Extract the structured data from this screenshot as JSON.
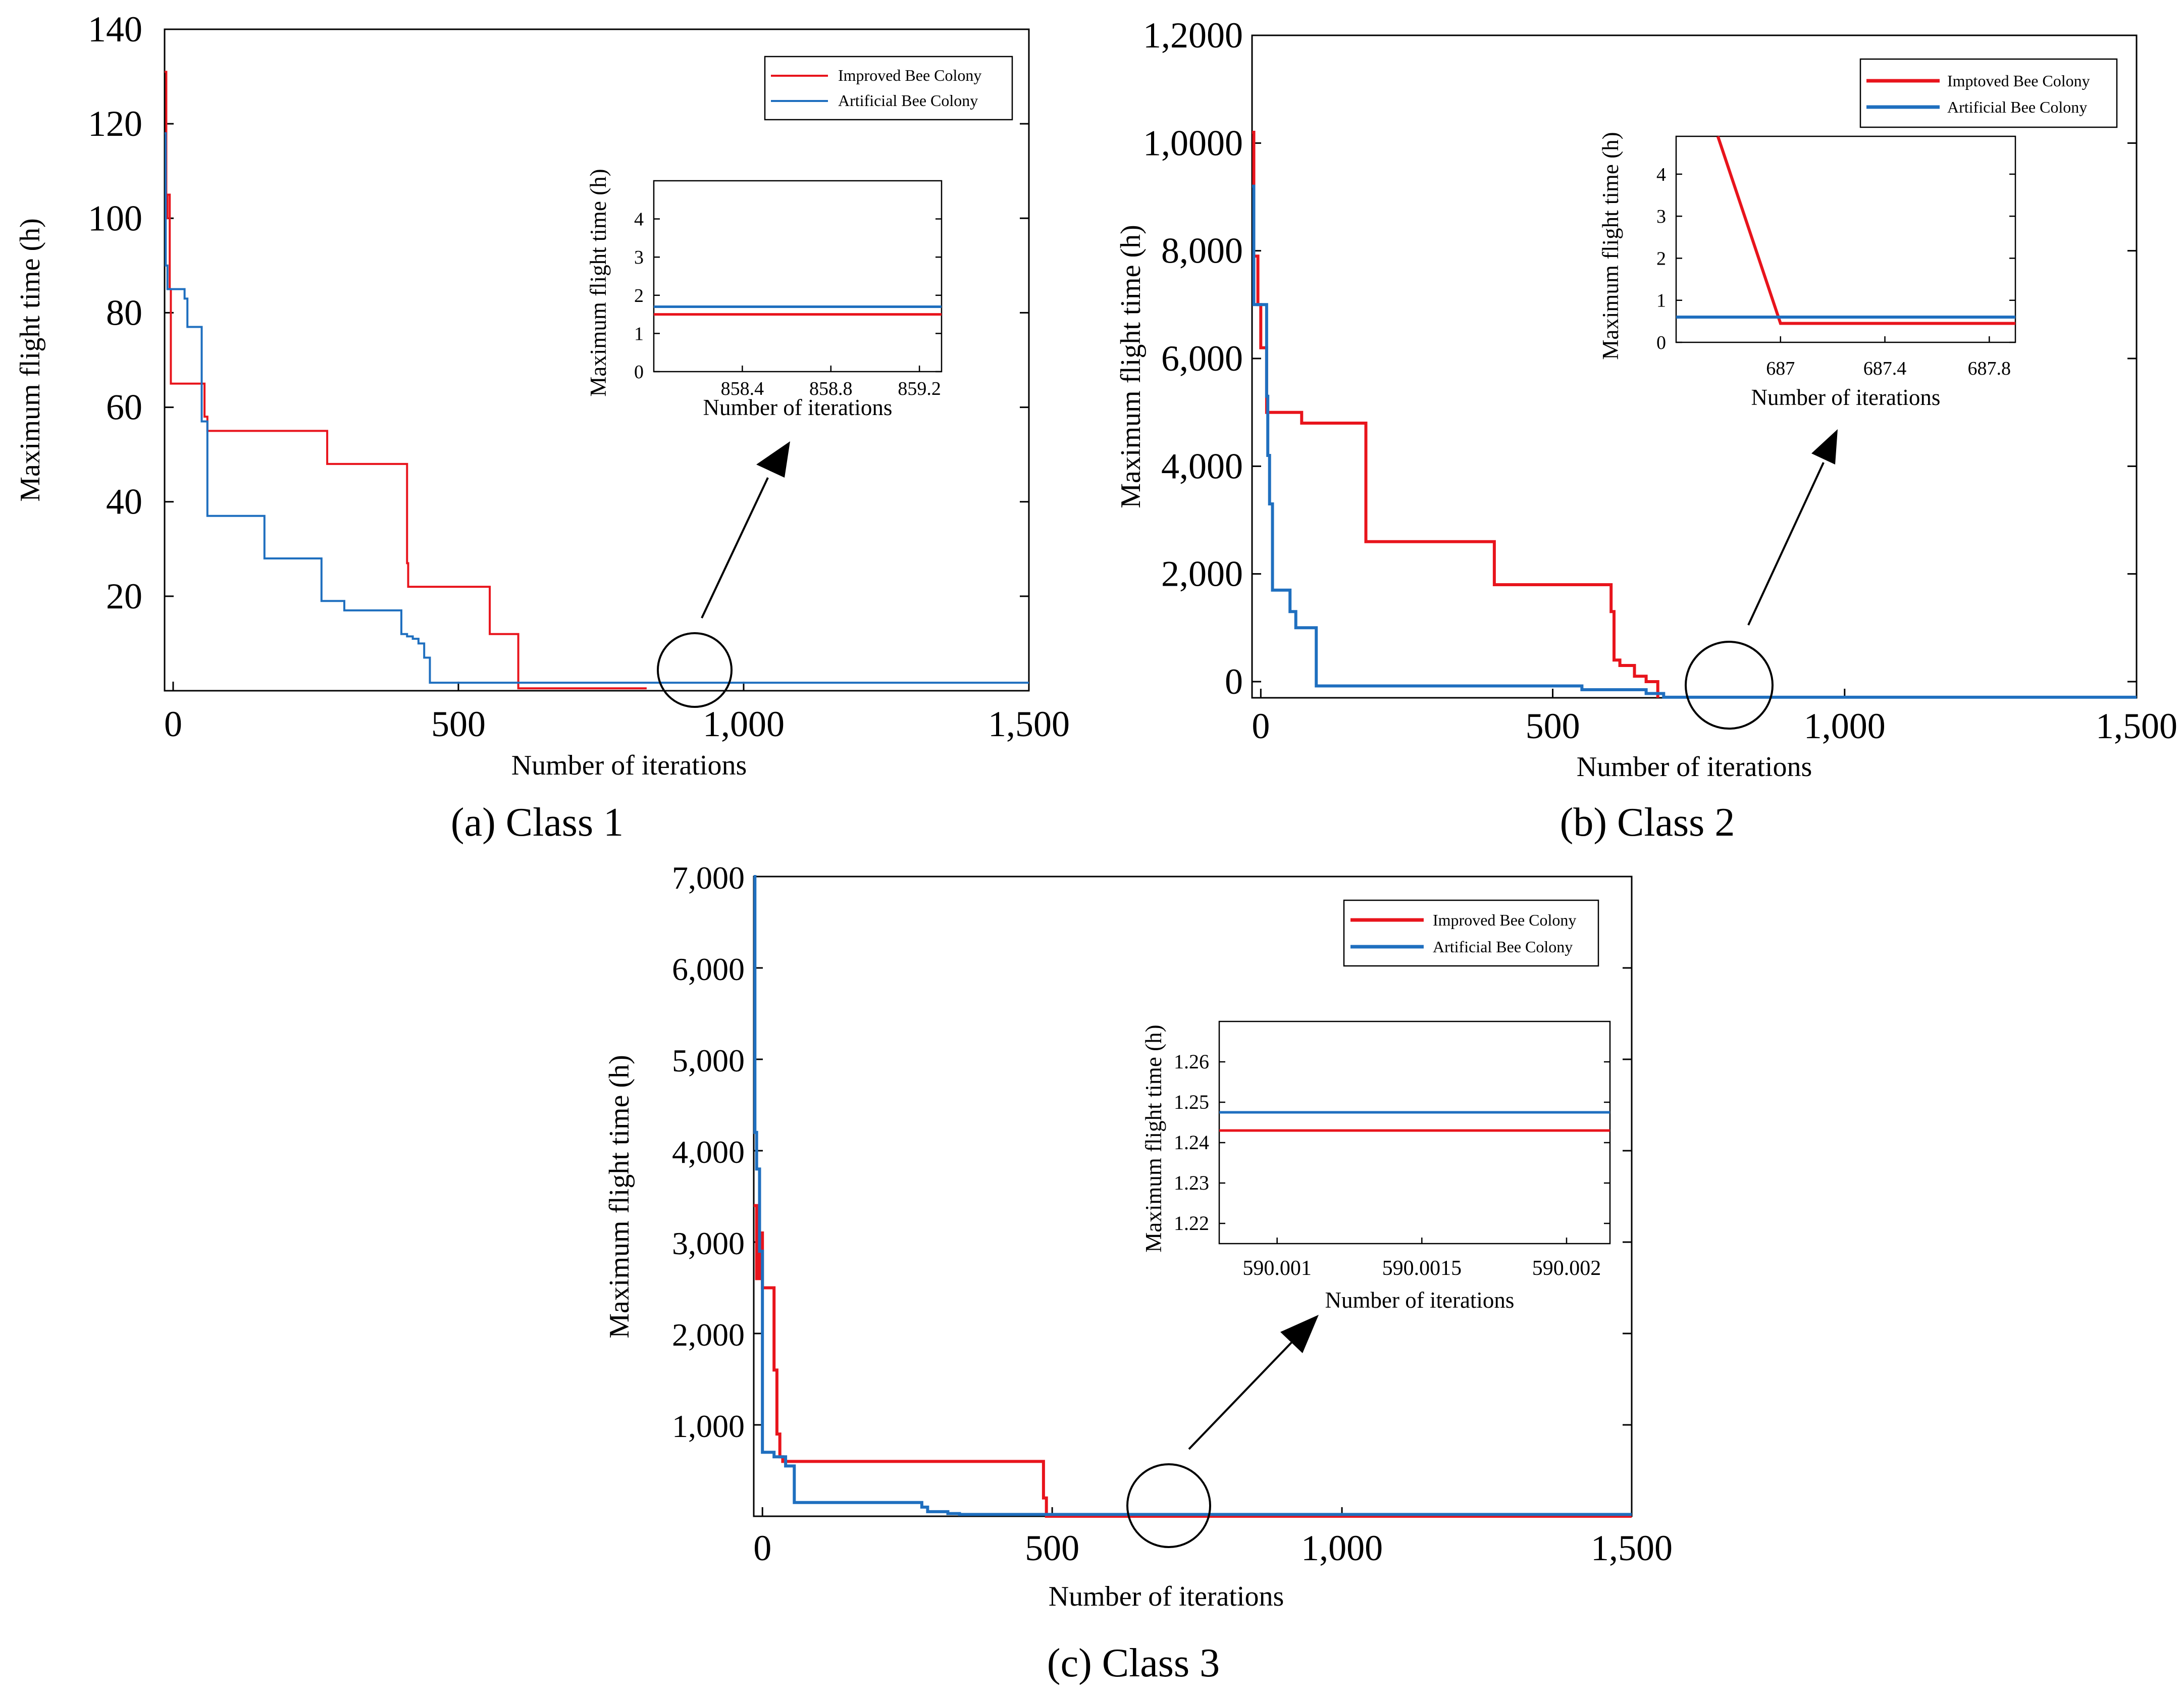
{
  "colors": {
    "improved": "#e8141c",
    "artificial": "#1f6fbf",
    "axis": "#000000"
  },
  "chart_data": [
    {
      "type": "line",
      "panel": "a",
      "caption": "(a) Class 1",
      "xlabel": "Number of iterations",
      "ylabel": "Maximum flight time (h)",
      "xlim": [
        -15,
        1500
      ],
      "ylim": [
        0,
        140
      ],
      "xticks": [
        0,
        500,
        1000,
        1500
      ],
      "xtick_labels": [
        "0",
        "500",
        "1,000",
        "1,500"
      ],
      "yticks": [
        20,
        40,
        60,
        80,
        100,
        120,
        140
      ],
      "ytick_labels": [
        "20",
        "40",
        "60",
        "80",
        "100",
        "120",
        "140"
      ],
      "legend": [
        "Improved Bee Colony",
        "Artificial Bee Colony"
      ],
      "legend_position": "top-right",
      "series": [
        {
          "name": "Improved Bee Colony",
          "x": [
            -15,
            -12,
            -12,
            -10,
            -10,
            -6,
            -6,
            -4,
            -4,
            55,
            55,
            60,
            60,
            270,
            270,
            410,
            410,
            412,
            412,
            555,
            555,
            605,
            605,
            830
          ],
          "y": [
            131,
            131,
            100,
            100,
            105,
            105,
            85,
            85,
            65,
            65,
            58,
            58,
            55,
            55,
            48,
            48,
            27,
            27,
            22,
            22,
            12,
            12,
            0.5,
            0.5
          ]
        },
        {
          "name": "Artificial Bee Colony",
          "x": [
            -15,
            -13,
            -13,
            -10,
            -10,
            20,
            20,
            25,
            25,
            50,
            50,
            60,
            60,
            160,
            160,
            260,
            260,
            300,
            300,
            400,
            400,
            410,
            410,
            420,
            420,
            430,
            430,
            440,
            440,
            450,
            450,
            1500
          ],
          "y": [
            118,
            118,
            90,
            90,
            85,
            85,
            83,
            83,
            77,
            77,
            57,
            57,
            37,
            37,
            28,
            28,
            19,
            19,
            17,
            17,
            12,
            12,
            11.5,
            11.5,
            11,
            11,
            10,
            10,
            7,
            7,
            1.7,
            1.7
          ]
        }
      ],
      "inset": {
        "xlabel": "Number of iterations",
        "ylabel": "Maximum flight time (h)",
        "xlim": [
          858.0,
          859.3
        ],
        "ylim": [
          0,
          5
        ],
        "xticks": [
          858.4,
          858.8,
          859.2
        ],
        "xtick_labels": [
          "858.4",
          "858.8",
          "859.2"
        ],
        "yticks": [
          0,
          1,
          2,
          3,
          4
        ],
        "ytick_labels": [
          "0",
          "1",
          "2",
          "3",
          "4"
        ],
        "improved_value": 1.5,
        "artificial_value": 1.7
      }
    },
    {
      "type": "line",
      "panel": "b",
      "caption": "(b) Class 2",
      "xlabel": "Number of iterations",
      "ylabel": "Maximum flight time (h)",
      "xlim": [
        -15,
        1500
      ],
      "ylim": [
        -300,
        12000
      ],
      "xticks": [
        0,
        500,
        1000,
        1500
      ],
      "xtick_labels": [
        "0",
        "500",
        "1,000",
        "1,500"
      ],
      "yticks": [
        0,
        2000,
        4000,
        6000,
        8000,
        10000,
        12000
      ],
      "ytick_labels": [
        "0",
        "2,000",
        "4,000",
        "6,000",
        "8,000",
        "1,0000",
        "1,2000"
      ],
      "legend": [
        "Imptoved Bee Colony",
        "Artificial Bee Colony"
      ],
      "legend_position": "top-right",
      "series": [
        {
          "name": "Improved Bee Colony",
          "x": [
            -15,
            -12,
            -12,
            -5,
            -5,
            0,
            0,
            10,
            10,
            70,
            70,
            180,
            180,
            400,
            400,
            600,
            600,
            605,
            605,
            615,
            615,
            640,
            640,
            660,
            660,
            680,
            680
          ],
          "y": [
            10200,
            10200,
            7900,
            7900,
            7000,
            7000,
            6200,
            6200,
            5000,
            5000,
            4800,
            4800,
            2600,
            2600,
            1800,
            1800,
            1300,
            1300,
            400,
            400,
            300,
            300,
            100,
            100,
            0,
            0,
            -300
          ]
        },
        {
          "name": "Artificial Bee Colony",
          "x": [
            -15,
            -12,
            -12,
            10,
            10,
            12,
            12,
            15,
            15,
            20,
            20,
            50,
            50,
            60,
            60,
            95,
            95,
            550,
            550,
            660,
            660,
            690,
            690,
            1500
          ],
          "y": [
            9200,
            9200,
            7000,
            7000,
            5300,
            5300,
            4200,
            4200,
            3300,
            3300,
            1700,
            1700,
            1300,
            1300,
            1000,
            1000,
            -80,
            -80,
            -150,
            -150,
            -220,
            -220,
            -290,
            -290
          ]
        }
      ],
      "inset": {
        "xlabel": "Number of iterations",
        "ylabel": "Maximum flight time (h)",
        "xlim": [
          686.6,
          687.9
        ],
        "ylim": [
          0,
          4.9
        ],
        "xticks": [
          687,
          687.4,
          687.8
        ],
        "xtick_labels": [
          "687",
          "687.4",
          "687.8"
        ],
        "yticks": [
          0,
          1,
          2,
          3,
          4
        ],
        "ytick_labels": [
          "0",
          "1",
          "2",
          "3",
          "4"
        ],
        "improved_drop": {
          "x": [
            686.76,
            687.0
          ],
          "y": [
            4.9,
            0.45
          ]
        },
        "improved_value": 0.45,
        "artificial_value": 0.6
      }
    },
    {
      "type": "line",
      "panel": "c",
      "caption": "(c) Class 3",
      "xlabel": "Number of iterations",
      "ylabel": "Maximum flight time  (h)",
      "xlim": [
        -15,
        1500
      ],
      "ylim": [
        0,
        7000
      ],
      "xticks": [
        0,
        500,
        1000,
        1500
      ],
      "xtick_labels": [
        "0",
        "500",
        "1,000",
        "1,500"
      ],
      "yticks": [
        1000,
        2000,
        3000,
        4000,
        5000,
        6000,
        7000
      ],
      "ytick_labels": [
        "1,000",
        "2,000",
        "3,000",
        "4,000",
        "5,000",
        "6,000",
        "7,000"
      ],
      "legend": [
        "Improved Bee Colony",
        "Artificial Bee Colony"
      ],
      "legend_position": "top-right",
      "series": [
        {
          "name": "Improved Bee Colony",
          "x": [
            -15,
            -10,
            -10,
            -5,
            -5,
            0,
            0,
            20,
            20,
            25,
            25,
            30,
            30,
            35,
            35,
            485,
            485,
            490,
            490,
            1500
          ],
          "y": [
            3400,
            3400,
            2600,
            2600,
            3100,
            3100,
            2500,
            2500,
            1600,
            1600,
            900,
            900,
            650,
            650,
            600,
            600,
            200,
            200,
            0,
            0
          ]
        },
        {
          "name": "Artificial Bee Colony",
          "x": [
            -15,
            -13,
            -13,
            -10,
            -10,
            -5,
            -5,
            0,
            0,
            20,
            20,
            40,
            40,
            55,
            55,
            275,
            275,
            285,
            285,
            320,
            320,
            340,
            340,
            1500
          ],
          "y": [
            7000,
            7000,
            4200,
            4200,
            3800,
            3800,
            2900,
            2900,
            700,
            700,
            650,
            650,
            550,
            550,
            150,
            150,
            100,
            100,
            50,
            50,
            30,
            30,
            20,
            20
          ]
        }
      ],
      "inset": {
        "xlabel": "Number of iterations",
        "ylabel": "Maximum flight time  (h)",
        "xlim": [
          590.0008,
          590.00215
        ],
        "ylim": [
          1.215,
          1.27
        ],
        "xticks": [
          590.001,
          590.0015,
          590.002
        ],
        "xtick_labels": [
          "590.001",
          "590.0015",
          "590.002"
        ],
        "yticks": [
          1.22,
          1.23,
          1.24,
          1.25,
          1.26
        ],
        "ytick_labels": [
          "1.22",
          "1.23",
          "1.24",
          "1.25",
          "1.26"
        ],
        "improved_value": 1.243,
        "artificial_value": 1.2475
      }
    }
  ]
}
